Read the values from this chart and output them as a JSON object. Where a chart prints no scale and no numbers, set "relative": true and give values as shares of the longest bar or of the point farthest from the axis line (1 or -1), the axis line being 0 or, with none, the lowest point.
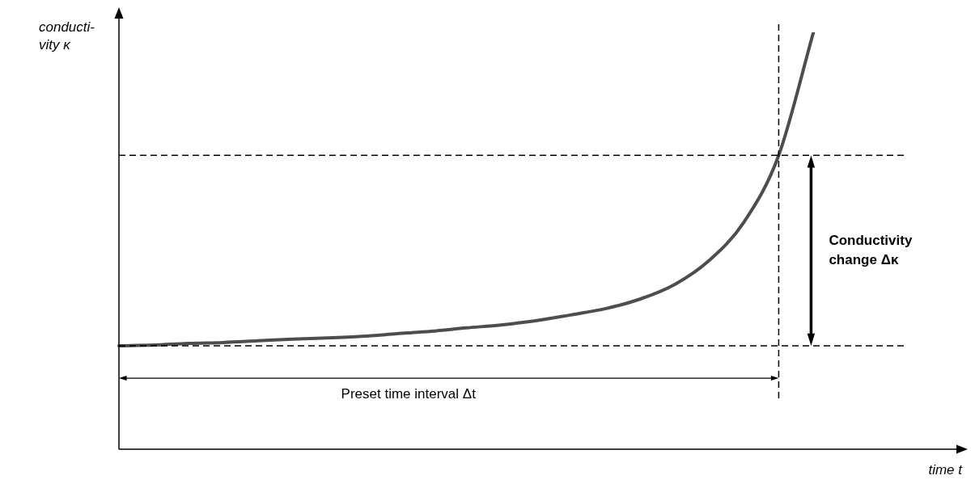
{
  "chart_data": {
    "type": "line",
    "relative": true,
    "xlabel": "time t",
    "ylabel": "conducti-\nvity κ",
    "categories": [
      null,
      null,
      null,
      null,
      null,
      null,
      null,
      null,
      null,
      null,
      null,
      null,
      null,
      null,
      null,
      null,
      null,
      null,
      null,
      null,
      null,
      null,
      null,
      null,
      null
    ],
    "series": [
      {
        "color": "#4d4d4d",
        "values": [
          0.248,
          0.25,
          0.254,
          0.256,
          0.26,
          0.264,
          0.267,
          0.271,
          0.277,
          0.283,
          0.291,
          0.298,
          0.308,
          0.322,
          0.337,
          0.36,
          0.395,
          0.453,
          0.545,
          0.705,
          1,
          null,
          null,
          null,
          null
        ]
      }
    ],
    "ref_lines": [
      {
        "axis": "y",
        "value": 0.248,
        "line_style": "dashed",
        "color": "#000000"
      },
      {
        "axis": "y",
        "value": 0.705,
        "line_style": "dashed",
        "color": "#000000"
      }
    ],
    "annotations": [
      "Preset time interval Δt",
      "Conductivity change Δκ"
    ],
    "grid": false,
    "legend": false,
    "marker": "none",
    "line_style": "solid"
  }
}
